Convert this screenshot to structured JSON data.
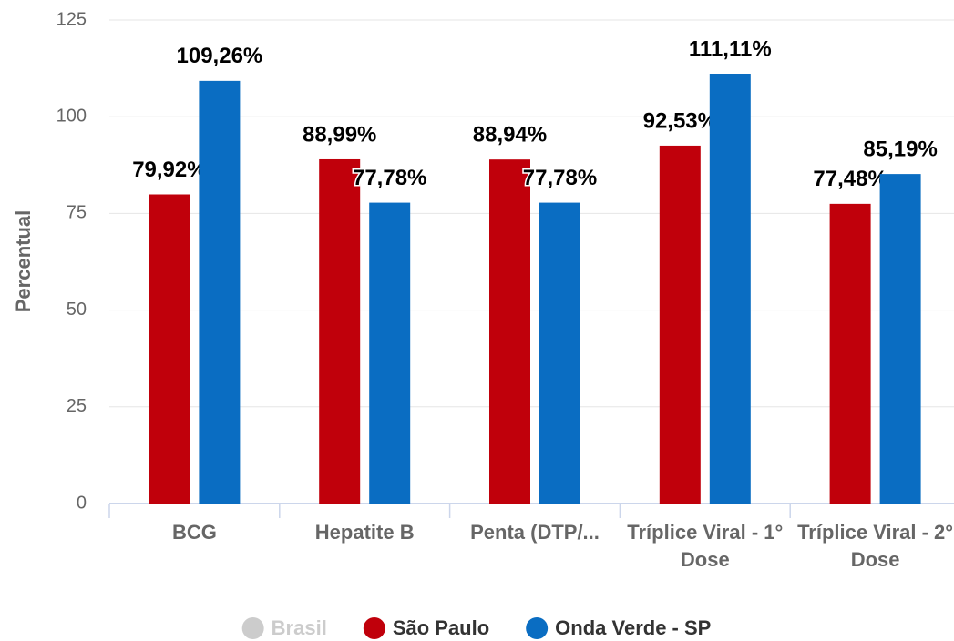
{
  "chart_data": {
    "type": "bar",
    "y_label": "Percentual",
    "categories": [
      "BCG",
      "Hepatite B",
      "Penta (DTP/...",
      "Tríplice Viral - 1° Dose",
      "Tríplice Viral - 2° Dose"
    ],
    "series": [
      {
        "name": "Brasil",
        "color": "#cccccc",
        "hidden": true,
        "values": [
          null,
          null,
          null,
          null,
          null
        ]
      },
      {
        "name": "São Paulo",
        "color": "#c0000b",
        "values": [
          79.92,
          88.99,
          88.94,
          92.53,
          77.48
        ],
        "value_labels": [
          "79,92%",
          "88,99%",
          "88,94%",
          "92,53%",
          "77,48%"
        ]
      },
      {
        "name": "Onda Verde - SP",
        "color": "#0a6dc2",
        "values": [
          109.26,
          77.78,
          77.78,
          111.11,
          85.19
        ],
        "value_labels": [
          "109,26%",
          "77,78%",
          "77,78%",
          "111,11%",
          "85,19%"
        ]
      }
    ],
    "ylim": [
      0,
      125
    ],
    "yticks": [
      0,
      25,
      50,
      75,
      100,
      125
    ],
    "grid": true,
    "legend": "bottom"
  }
}
